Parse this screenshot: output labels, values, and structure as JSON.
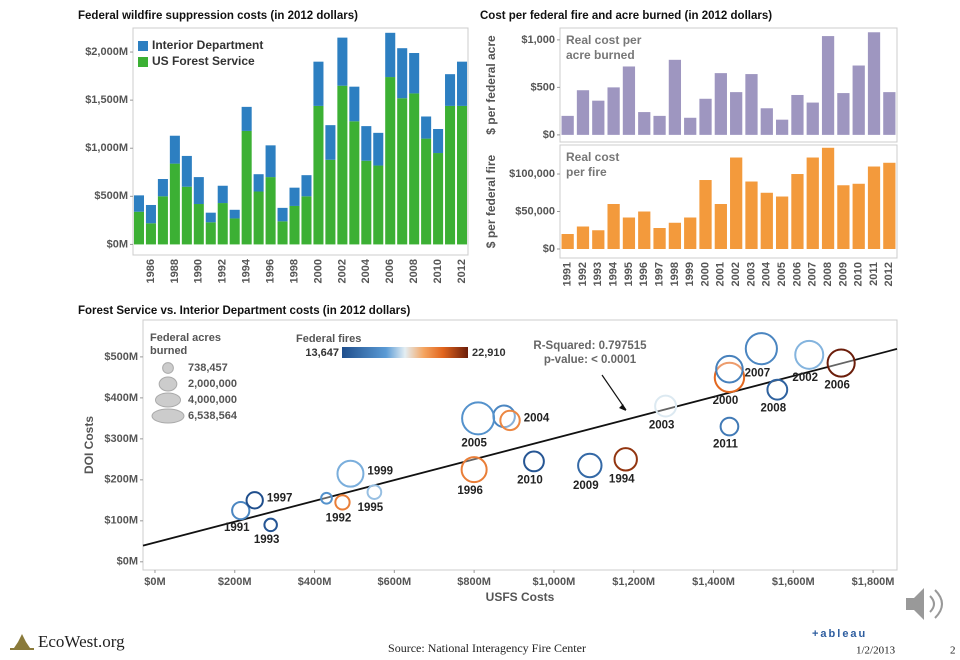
{
  "chart_data": [
    {
      "type": "bar",
      "title": "Federal wildfire suppression costs (in 2012 dollars)",
      "categories": [
        null,
        "1986",
        null,
        "1988",
        null,
        "1990",
        null,
        "1992",
        null,
        "1994",
        null,
        "1996",
        null,
        "1998",
        null,
        "2000",
        null,
        "2002",
        null,
        "2004",
        null,
        "2006",
        null,
        "2008",
        null,
        "2010",
        null,
        "2012"
      ],
      "series": [
        {
          "name": "US Forest Service",
          "color": "#3cb034",
          "values": [
            340,
            220,
            500,
            840,
            600,
            420,
            230,
            430,
            270,
            1180,
            550,
            700,
            240,
            400,
            500,
            1440,
            880,
            1650,
            1280,
            870,
            820,
            1740,
            1520,
            1570,
            1100,
            950,
            1440,
            1440
          ]
        },
        {
          "name": "Interior Department",
          "color": "#2d7fc1",
          "values": [
            170,
            190,
            180,
            290,
            320,
            280,
            100,
            180,
            90,
            250,
            180,
            330,
            140,
            190,
            220,
            460,
            360,
            500,
            360,
            360,
            340,
            460,
            520,
            420,
            230,
            250,
            330,
            460
          ]
        }
      ],
      "ylim": [
        -110,
        2250
      ],
      "yticks": [
        {
          "value": 0,
          "label": "$0M"
        },
        {
          "value": 500,
          "label": "$500M"
        },
        {
          "value": 1000,
          "label": "$1,000M"
        },
        {
          "value": 1500,
          "label": "$1,500M"
        },
        {
          "value": 2000,
          "label": "$2,000M"
        }
      ],
      "legend": "top-left"
    },
    {
      "type": "bar",
      "title": "Cost per federal fire and acre burned (in 2012 dollars)",
      "categories": [
        "1991",
        "1992",
        "1993",
        "1994",
        "1995",
        "1996",
        "1997",
        "1998",
        "1999",
        "2000",
        "2001",
        "2002",
        "2003",
        "2004",
        "2005",
        "2006",
        "2007",
        "2008",
        "2009",
        "2010",
        "2011",
        "2012"
      ],
      "panels": [
        {
          "ylabel": "$ per federal acre",
          "annotation": [
            "Real cost per",
            "acre burned"
          ],
          "color": "#9e96c0",
          "values": [
            200,
            470,
            360,
            500,
            720,
            240,
            200,
            790,
            180,
            380,
            650,
            450,
            640,
            280,
            160,
            420,
            340,
            1040,
            440,
            730,
            1080,
            450
          ],
          "ylim": [
            -75,
            1125
          ],
          "yticks": [
            {
              "value": 0,
              "label": "$0"
            },
            {
              "value": 500,
              "label": "$500"
            },
            {
              "value": 1000,
              "label": "$1,000"
            }
          ]
        },
        {
          "ylabel": "$ per federal fire",
          "annotation": [
            "Real cost",
            "per fire"
          ],
          "color": "#f39a3c",
          "values": [
            20000,
            30000,
            25000,
            60000,
            42000,
            50000,
            28000,
            35000,
            42000,
            92000,
            60000,
            122000,
            90000,
            75000,
            70000,
            100000,
            122000,
            135000,
            85000,
            87000,
            110000,
            115000
          ],
          "ylim": [
            -12000,
            138700
          ],
          "yticks": [
            {
              "value": 0,
              "label": "$0"
            },
            {
              "value": 50000,
              "label": "$50,000"
            },
            {
              "value": 100000,
              "label": "$100,000"
            }
          ]
        }
      ]
    },
    {
      "type": "scatter",
      "title": "Forest Service vs. Interior Department costs (in 2012 dollars)",
      "xlabel": "USFS Costs",
      "ylabel": "DOI Costs",
      "xlim": [
        -30,
        1860
      ],
      "ylim": [
        -20,
        590
      ],
      "xticks": [
        {
          "value": 0,
          "label": "$0M"
        },
        {
          "value": 200,
          "label": "$200M"
        },
        {
          "value": 400,
          "label": "$400M"
        },
        {
          "value": 600,
          "label": "$600M"
        },
        {
          "value": 800,
          "label": "$800M"
        },
        {
          "value": 1000,
          "label": "$1,000M"
        },
        {
          "value": 1200,
          "label": "$1,200M"
        },
        {
          "value": 1400,
          "label": "$1,400M"
        },
        {
          "value": 1600,
          "label": "$1,600M"
        },
        {
          "value": 1800,
          "label": "$1,800M"
        }
      ],
      "yticks": [
        {
          "value": 0,
          "label": "$0M"
        },
        {
          "value": 100,
          "label": "$100M"
        },
        {
          "value": 200,
          "label": "$200M"
        },
        {
          "value": 300,
          "label": "$300M"
        },
        {
          "value": 400,
          "label": "$400M"
        },
        {
          "value": 500,
          "label": "$500M"
        }
      ],
      "points": [
        {
          "label": "1991",
          "x": 215,
          "y": 125,
          "size": 1900000,
          "fires": 16000
        },
        {
          "label": "1992",
          "x": 470,
          "y": 145,
          "size": 1300000,
          "fires": 20500
        },
        {
          "label": "1993",
          "x": 290,
          "y": 90,
          "size": 1000000,
          "fires": 14000
        },
        {
          "label": "1994",
          "x": 1180,
          "y": 250,
          "size": 3200000,
          "fires": 22300
        },
        {
          "label": "1995",
          "x": 550,
          "y": 170,
          "size": 1200000,
          "fires": 17500
        },
        {
          "label": "1996",
          "x": 800,
          "y": 225,
          "size": 4000000,
          "fires": 20500
        },
        {
          "label": "1997",
          "x": 250,
          "y": 150,
          "size": 1700000,
          "fires": 13647
        },
        {
          "label": null,
          "x": 430,
          "y": 155,
          "size": 738457,
          "fires": 16500
        },
        {
          "label": "1999",
          "x": 490,
          "y": 215,
          "size": 4300000,
          "fires": 17200
        },
        {
          "label": "2000",
          "x": 1440,
          "y": 450,
          "size": 5500000,
          "fires": 21000
        },
        {
          "label": null,
          "x": 875,
          "y": 355,
          "size": 3000000,
          "fires": 16000
        },
        {
          "label": "2002",
          "x": 1640,
          "y": 505,
          "size": 5000000,
          "fires": 17300
        },
        {
          "label": "2003",
          "x": 1280,
          "y": 380,
          "size": 2800000,
          "fires": 18200
        },
        {
          "label": "2004",
          "x": 890,
          "y": 345,
          "size": 2400000,
          "fires": 20300
        },
        {
          "label": "2005",
          "x": 810,
          "y": 350,
          "size": 6538564,
          "fires": 16500
        },
        {
          "label": "2006",
          "x": 1720,
          "y": 485,
          "size": 4700000,
          "fires": 22910
        },
        {
          "label": "2007",
          "x": 1520,
          "y": 520,
          "size": 6200000,
          "fires": 16000
        },
        {
          "label": "2008",
          "x": 1560,
          "y": 420,
          "size": 2500000,
          "fires": 14500
        },
        {
          "label": "2009",
          "x": 1090,
          "y": 235,
          "size": 3500000,
          "fires": 14800
        },
        {
          "label": "2010",
          "x": 950,
          "y": 245,
          "size": 2500000,
          "fires": 14000
        },
        {
          "label": "2011",
          "x": 1440,
          "y": 330,
          "size": 2000000,
          "fires": 15500
        },
        {
          "label": null,
          "x": 1440,
          "y": 470,
          "size": 4500000,
          "fires": 15800
        }
      ],
      "trend_line": {
        "intercept": 47,
        "slope": 0.254
      },
      "annotation": [
        "R-Squared: 0.797515",
        "p-value: < 0.0001"
      ],
      "size_legend": {
        "title": [
          "Federal acres",
          "burned"
        ],
        "entries": [
          {
            "value": 738457,
            "label": "738,457"
          },
          {
            "value": 2000000,
            "label": "2,000,000"
          },
          {
            "value": 4000000,
            "label": "4,000,000"
          },
          {
            "value": 6538564,
            "label": "6,538,564"
          }
        ]
      },
      "color_legend": {
        "title": "Federal fires",
        "min": {
          "value": 13647,
          "label": "13,647"
        },
        "max": {
          "value": 22910,
          "label": "22,910"
        }
      }
    }
  ],
  "footer": {
    "brand": "EcoWest.org",
    "source": "Source:  National Interagency Fire Center",
    "logo": "+ableau",
    "date": "1/2/2013",
    "page": "2"
  }
}
